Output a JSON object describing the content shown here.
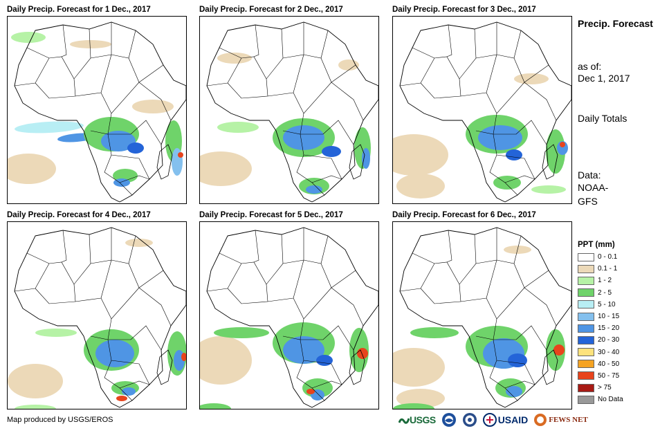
{
  "panels": [
    {
      "title": "Daily Precip. Forecast for 1 Dec., 2017"
    },
    {
      "title": "Daily Precip. Forecast for 2 Dec., 2017"
    },
    {
      "title": "Daily Precip. Forecast for 3 Dec., 2017"
    },
    {
      "title": "Daily Precip. Forecast for 4 Dec., 2017"
    },
    {
      "title": "Daily Precip. Forecast for 5 Dec., 2017"
    },
    {
      "title": "Daily Precip. Forecast for 6 Dec., 2017"
    }
  ],
  "sidebar": {
    "title": "Precip. Forecast",
    "as_of_label": "as of:",
    "date": "Dec 1, 2017",
    "totals_label": "Daily Totals",
    "data_label": "Data:",
    "source": "NOAA-GFS"
  },
  "legend": {
    "title": "PPT (mm)",
    "items": [
      {
        "label": "0 - 0.1",
        "color": "#ffffff"
      },
      {
        "label": "0.1 - 1",
        "color": "#ecd9b8"
      },
      {
        "label": "1 - 2",
        "color": "#b6f2a6"
      },
      {
        "label": "2 - 5",
        "color": "#6fd36a"
      },
      {
        "label": "5 - 10",
        "color": "#b8eef4"
      },
      {
        "label": "10 - 15",
        "color": "#84c0ee"
      },
      {
        "label": "15 - 20",
        "color": "#4f95e4"
      },
      {
        "label": "20 - 30",
        "color": "#2464d8"
      },
      {
        "label": "30 - 40",
        "color": "#fde27c"
      },
      {
        "label": "40 - 50",
        "color": "#f5a323"
      },
      {
        "label": "50 - 75",
        "color": "#e8441c"
      },
      {
        "label": "> 75",
        "color": "#a81a14"
      },
      {
        "label": "No Data",
        "color": "#999999"
      }
    ]
  },
  "footer": {
    "credit": "Map produced by USGS/EROS",
    "logos": [
      {
        "name": "usgs-logo",
        "text": "USGS"
      },
      {
        "name": "noaa-logo",
        "text": "NOAA"
      },
      {
        "name": "dhs-logo",
        "text": ""
      },
      {
        "name": "usaid-logo",
        "text": "USAID"
      },
      {
        "name": "fewsnet-logo",
        "text": "FEWS NET"
      }
    ]
  }
}
